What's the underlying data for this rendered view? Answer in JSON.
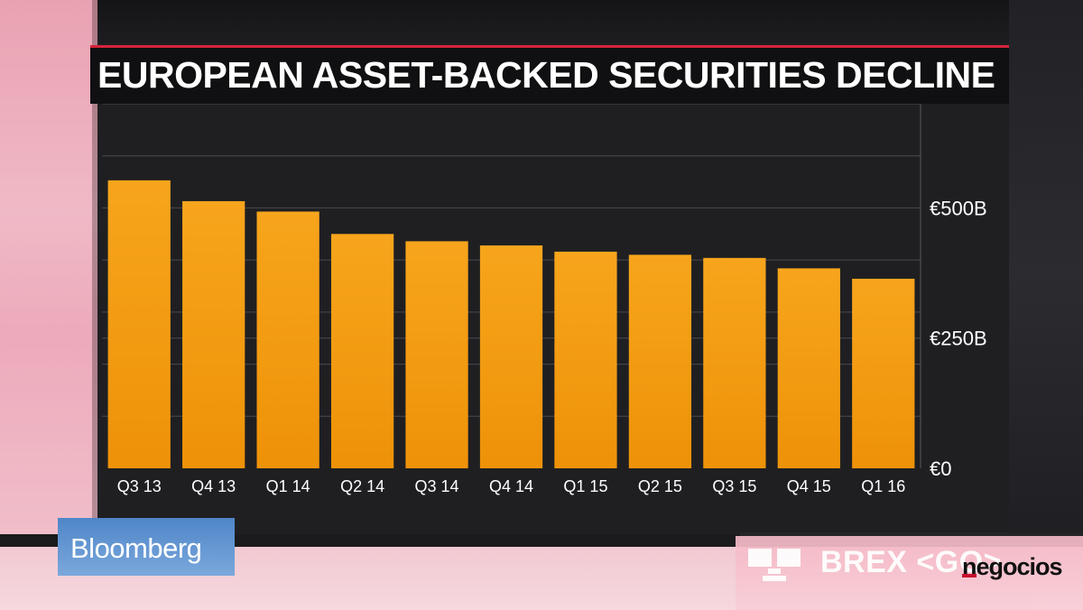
{
  "chart_data": {
    "type": "bar",
    "title": "EUROPEAN ASSET-BACKED SECURITIES DECLINE",
    "categories": [
      "Q3 13",
      "Q4 13",
      "Q1 14",
      "Q2 14",
      "Q3 14",
      "Q4 14",
      "Q1 15",
      "Q2 15",
      "Q3 15",
      "Q4 15",
      "Q1 16"
    ],
    "values": [
      553,
      513,
      493,
      450,
      436,
      428,
      416,
      410,
      404,
      384,
      364
    ],
    "unit": "€ billions",
    "ylim": [
      0,
      700
    ],
    "yticks": [
      {
        "value": 0,
        "label": "€0"
      },
      {
        "value": 250,
        "label": "€250B"
      },
      {
        "value": 500,
        "label": "€500B"
      }
    ],
    "grid_values": [
      100,
      200,
      300,
      400,
      600,
      700
    ],
    "grid": true,
    "axis_side": "right",
    "bar_color": "#f39c12",
    "background_color": "#1f1f22"
  },
  "branding": {
    "network": "Bloomberg",
    "ticker_command": "BREX <GO>",
    "ticker_icon": "bloomberg-terminal-icon",
    "watermark": "negocios"
  },
  "colors": {
    "accent_red": "#d6243a",
    "bloomberg_blue": "#5b8fd0"
  }
}
